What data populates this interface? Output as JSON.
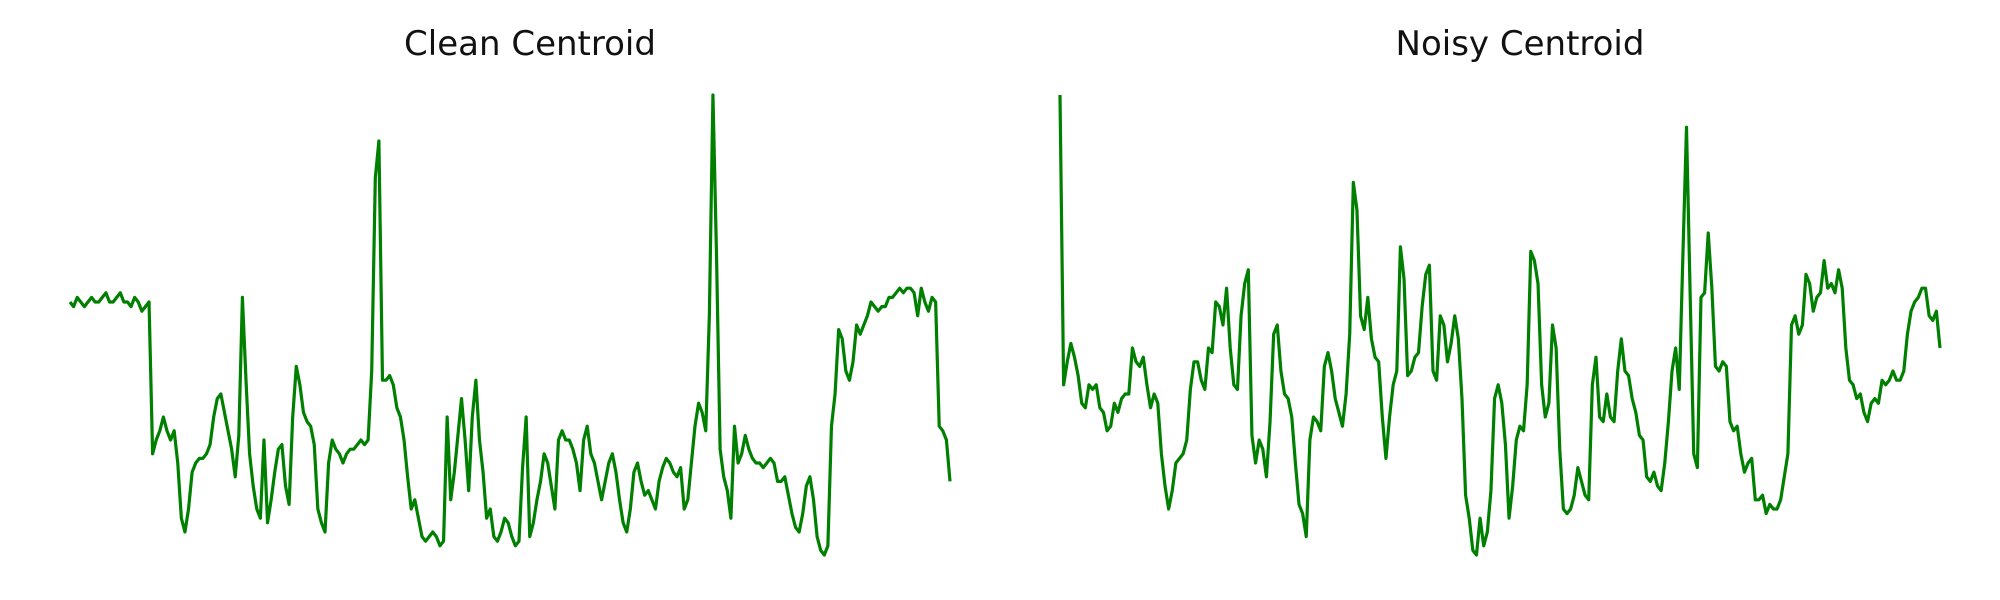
{
  "line_color": "#008000",
  "chart_data": [
    {
      "type": "line",
      "title": "Clean Centroid",
      "axes_visible": false,
      "grid": false,
      "ylim": [
        0,
        1
      ],
      "series": [
        {
          "values": [
            0.55,
            0.54,
            0.56,
            0.55,
            0.54,
            0.55,
            0.56,
            0.55,
            0.55,
            0.56,
            0.57,
            0.55,
            0.55,
            0.56,
            0.57,
            0.55,
            0.55,
            0.54,
            0.56,
            0.55,
            0.53,
            0.54,
            0.55,
            0.22,
            0.25,
            0.27,
            0.3,
            0.27,
            0.25,
            0.27,
            0.2,
            0.08,
            0.05,
            0.1,
            0.18,
            0.2,
            0.21,
            0.21,
            0.22,
            0.24,
            0.3,
            0.34,
            0.35,
            0.31,
            0.27,
            0.23,
            0.17,
            0.26,
            0.56,
            0.38,
            0.22,
            0.15,
            0.1,
            0.08,
            0.25,
            0.07,
            0.12,
            0.18,
            0.23,
            0.24,
            0.15,
            0.11,
            0.3,
            0.41,
            0.37,
            0.31,
            0.29,
            0.28,
            0.24,
            0.1,
            0.07,
            0.05,
            0.2,
            0.25,
            0.23,
            0.22,
            0.2,
            0.22,
            0.23,
            0.23,
            0.24,
            0.25,
            0.24,
            0.25,
            0.4,
            0.82,
            0.9,
            0.38,
            0.38,
            0.39,
            0.37,
            0.32,
            0.3,
            0.25,
            0.17,
            0.1,
            0.12,
            0.08,
            0.04,
            0.03,
            0.04,
            0.05,
            0.04,
            0.02,
            0.03,
            0.3,
            0.12,
            0.18,
            0.26,
            0.34,
            0.25,
            0.14,
            0.3,
            0.38,
            0.25,
            0.18,
            0.08,
            0.1,
            0.04,
            0.03,
            0.05,
            0.08,
            0.07,
            0.04,
            0.02,
            0.03,
            0.19,
            0.3,
            0.04,
            0.07,
            0.12,
            0.16,
            0.22,
            0.2,
            0.15,
            0.1,
            0.25,
            0.27,
            0.25,
            0.25,
            0.23,
            0.2,
            0.14,
            0.25,
            0.28,
            0.22,
            0.2,
            0.16,
            0.12,
            0.16,
            0.2,
            0.22,
            0.18,
            0.12,
            0.07,
            0.05,
            0.1,
            0.18,
            0.2,
            0.16,
            0.13,
            0.14,
            0.12,
            0.1,
            0.16,
            0.19,
            0.21,
            0.2,
            0.18,
            0.17,
            0.19,
            0.1,
            0.12,
            0.2,
            0.28,
            0.33,
            0.31,
            0.27,
            0.52,
            1.0,
            0.65,
            0.23,
            0.17,
            0.14,
            0.08,
            0.28,
            0.2,
            0.22,
            0.26,
            0.23,
            0.21,
            0.2,
            0.2,
            0.19,
            0.2,
            0.21,
            0.2,
            0.16,
            0.16,
            0.17,
            0.13,
            0.09,
            0.06,
            0.05,
            0.09,
            0.15,
            0.17,
            0.12,
            0.04,
            0.01,
            0.0,
            0.02,
            0.28,
            0.35,
            0.49,
            0.47,
            0.4,
            0.38,
            0.42,
            0.5,
            0.48,
            0.5,
            0.52,
            0.55,
            0.54,
            0.53,
            0.54,
            0.54,
            0.56,
            0.56,
            0.57,
            0.58,
            0.57,
            0.58,
            0.58,
            0.57,
            0.52,
            0.58,
            0.55,
            0.53,
            0.56,
            0.55,
            0.28,
            0.27,
            0.25,
            0.16
          ]
        }
      ]
    },
    {
      "type": "line",
      "title": "Noisy Centroid",
      "axes_visible": false,
      "grid": false,
      "ylim": [
        0,
        1
      ],
      "series": [
        {
          "values": [
            1.0,
            0.37,
            0.42,
            0.46,
            0.43,
            0.39,
            0.33,
            0.32,
            0.37,
            0.36,
            0.37,
            0.32,
            0.31,
            0.27,
            0.28,
            0.33,
            0.31,
            0.34,
            0.35,
            0.35,
            0.45,
            0.42,
            0.41,
            0.43,
            0.37,
            0.32,
            0.35,
            0.33,
            0.22,
            0.15,
            0.1,
            0.14,
            0.2,
            0.21,
            0.22,
            0.25,
            0.36,
            0.42,
            0.42,
            0.38,
            0.36,
            0.45,
            0.44,
            0.55,
            0.54,
            0.5,
            0.58,
            0.45,
            0.37,
            0.36,
            0.52,
            0.59,
            0.62,
            0.26,
            0.2,
            0.25,
            0.23,
            0.17,
            0.29,
            0.48,
            0.5,
            0.4,
            0.35,
            0.34,
            0.3,
            0.2,
            0.11,
            0.09,
            0.04,
            0.25,
            0.3,
            0.29,
            0.27,
            0.41,
            0.44,
            0.4,
            0.34,
            0.31,
            0.28,
            0.35,
            0.48,
            0.81,
            0.75,
            0.52,
            0.49,
            0.56,
            0.47,
            0.43,
            0.42,
            0.3,
            0.21,
            0.3,
            0.37,
            0.4,
            0.67,
            0.6,
            0.39,
            0.4,
            0.43,
            0.44,
            0.54,
            0.61,
            0.63,
            0.4,
            0.38,
            0.52,
            0.5,
            0.42,
            0.46,
            0.52,
            0.47,
            0.34,
            0.13,
            0.08,
            0.01,
            0.0,
            0.08,
            0.02,
            0.05,
            0.14,
            0.34,
            0.37,
            0.33,
            0.24,
            0.08,
            0.15,
            0.25,
            0.28,
            0.27,
            0.37,
            0.66,
            0.64,
            0.59,
            0.37,
            0.3,
            0.33,
            0.5,
            0.45,
            0.23,
            0.1,
            0.09,
            0.1,
            0.13,
            0.19,
            0.16,
            0.13,
            0.12,
            0.37,
            0.43,
            0.3,
            0.29,
            0.35,
            0.3,
            0.29,
            0.4,
            0.47,
            0.4,
            0.39,
            0.34,
            0.31,
            0.26,
            0.25,
            0.17,
            0.16,
            0.18,
            0.15,
            0.14,
            0.2,
            0.29,
            0.4,
            0.45,
            0.36,
            0.65,
            0.93,
            0.57,
            0.22,
            0.19,
            0.56,
            0.57,
            0.7,
            0.58,
            0.41,
            0.4,
            0.42,
            0.41,
            0.29,
            0.27,
            0.28,
            0.22,
            0.18,
            0.2,
            0.21,
            0.12,
            0.12,
            0.13,
            0.09,
            0.11,
            0.1,
            0.1,
            0.12,
            0.17,
            0.22,
            0.5,
            0.52,
            0.48,
            0.5,
            0.61,
            0.59,
            0.53,
            0.56,
            0.57,
            0.64,
            0.58,
            0.59,
            0.57,
            0.62,
            0.58,
            0.45,
            0.38,
            0.37,
            0.34,
            0.35,
            0.31,
            0.29,
            0.33,
            0.34,
            0.33,
            0.38,
            0.37,
            0.38,
            0.4,
            0.38,
            0.38,
            0.4,
            0.48,
            0.53,
            0.55,
            0.56,
            0.58,
            0.58,
            0.52,
            0.51,
            0.53,
            0.45
          ]
        }
      ]
    }
  ]
}
